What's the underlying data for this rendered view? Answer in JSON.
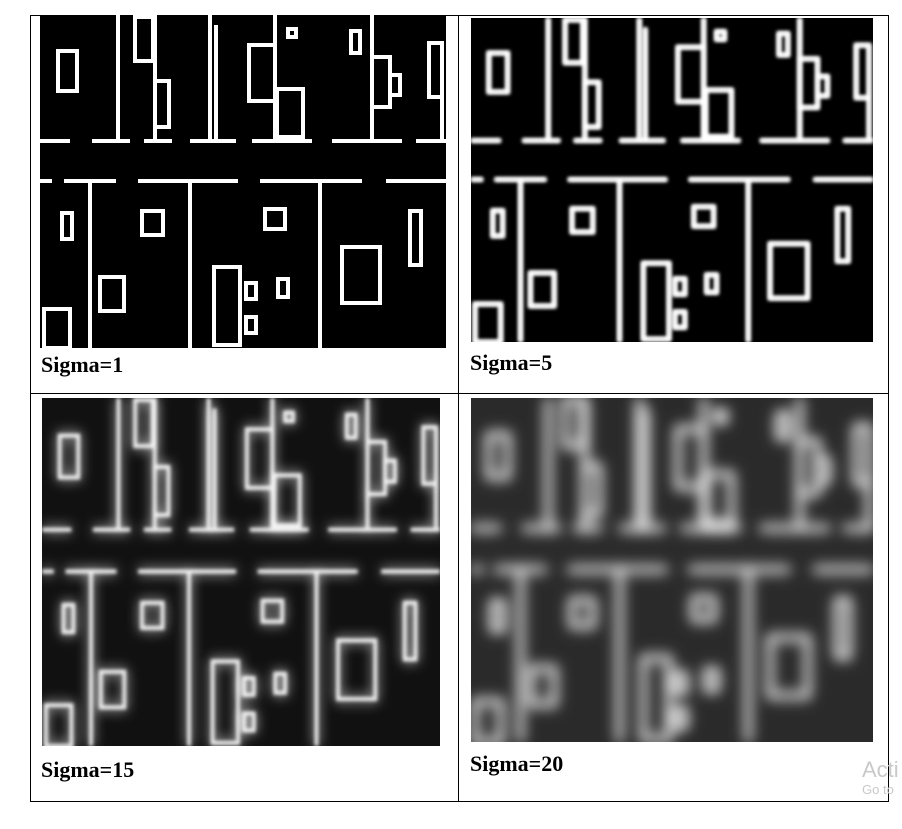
{
  "cells": [
    {
      "caption": "Sigma=1"
    },
    {
      "caption": "Sigma=5"
    },
    {
      "caption": "Sigma=15"
    },
    {
      "caption": "Sigma=20"
    }
  ],
  "watermark": {
    "line1": "Acti",
    "line2": "Go to"
  }
}
